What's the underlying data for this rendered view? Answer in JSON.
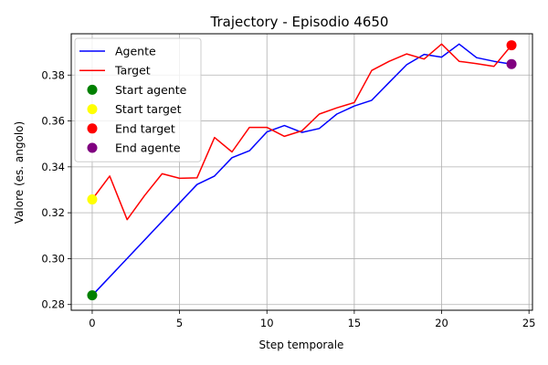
{
  "chart_data": {
    "type": "line",
    "title": "Trajectory - Episodio 4650",
    "xlabel": "Step temporale",
    "ylabel": "Valore (es. angolo)",
    "xlim": [
      -1.2,
      25.2
    ],
    "ylim": [
      0.2775,
      0.398
    ],
    "xticks": [
      0,
      5,
      10,
      15,
      20,
      25
    ],
    "yticks": [
      0.28,
      0.3,
      0.32,
      0.34,
      0.36,
      0.38
    ],
    "ytick_labels": [
      "0.28",
      "0.30",
      "0.32",
      "0.34",
      "0.36",
      "0.38"
    ],
    "grid": true,
    "legend_position": "upper-left",
    "series": [
      {
        "name": "Agente",
        "color": "#0000ff",
        "x": [
          0,
          6,
          7,
          8,
          9,
          10,
          11,
          12,
          13,
          14,
          15,
          16,
          17,
          18,
          19,
          20,
          21,
          22,
          23,
          24
        ],
        "y": [
          0.284,
          0.3323,
          0.336,
          0.344,
          0.347,
          0.3552,
          0.358,
          0.355,
          0.3567,
          0.363,
          0.3665,
          0.369,
          0.3768,
          0.3845,
          0.389,
          0.3878,
          0.3935,
          0.3876,
          0.386,
          0.3848
        ]
      },
      {
        "name": "Target",
        "color": "#ff0000",
        "x": [
          0,
          1,
          2,
          3,
          4,
          5,
          6,
          7,
          8,
          9,
          10,
          11,
          12,
          13,
          14,
          15,
          16,
          17,
          18,
          19,
          20,
          21,
          22,
          23,
          24
        ],
        "y": [
          0.3258,
          0.336,
          0.317,
          0.3275,
          0.337,
          0.335,
          0.3352,
          0.3528,
          0.3465,
          0.3572,
          0.3572,
          0.3533,
          0.3557,
          0.363,
          0.3657,
          0.368,
          0.382,
          0.386,
          0.3892,
          0.387,
          0.3935,
          0.386,
          0.385,
          0.3838,
          0.393
        ]
      }
    ],
    "markers": [
      {
        "name": "Start agente",
        "color": "#008000",
        "x": 0,
        "y": 0.284
      },
      {
        "name": "Start target",
        "color": "#ffff00",
        "x": 0,
        "y": 0.3258
      },
      {
        "name": "End target",
        "color": "#ff0000",
        "x": 24,
        "y": 0.393
      },
      {
        "name": "End agente",
        "color": "#800080",
        "x": 24,
        "y": 0.3848
      }
    ]
  }
}
